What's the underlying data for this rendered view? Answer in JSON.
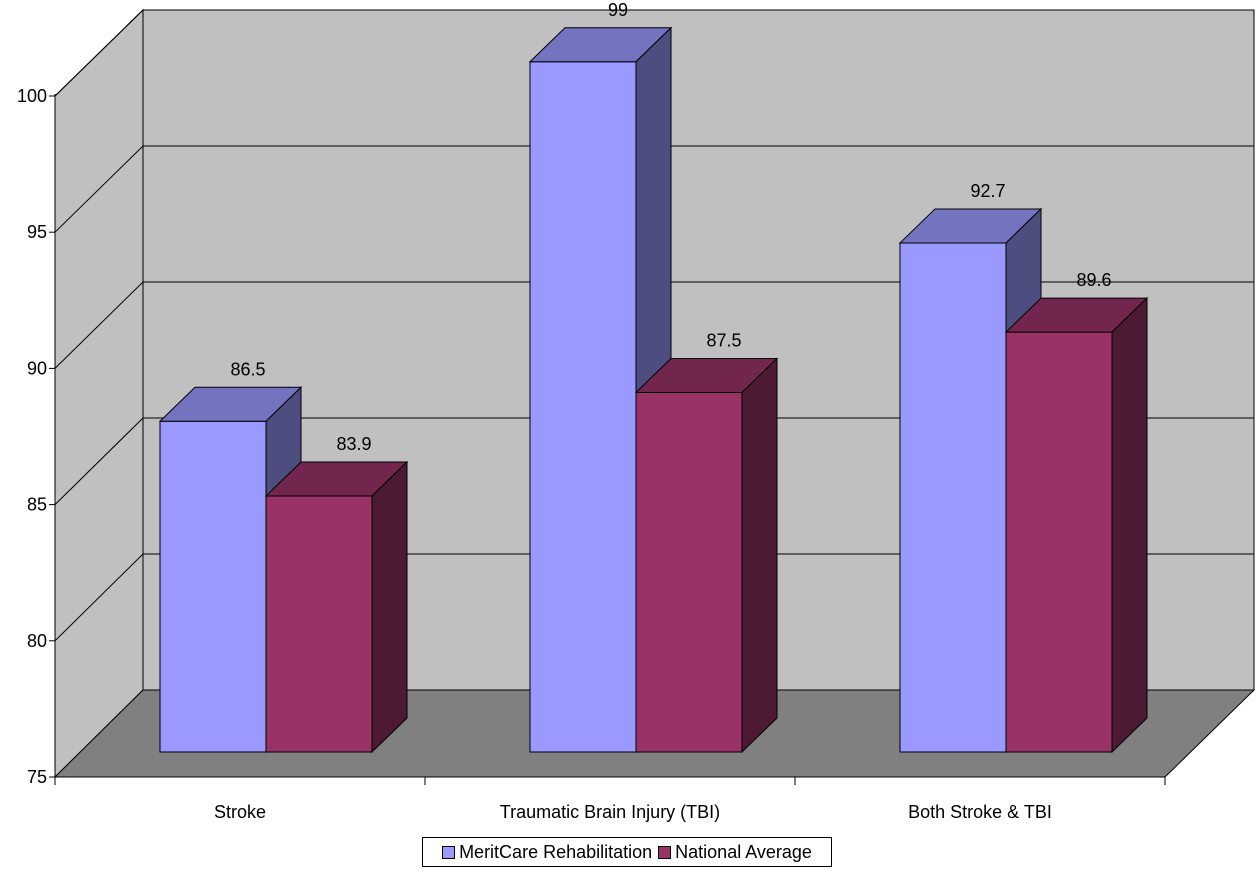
{
  "chart_data": {
    "type": "bar",
    "categories": [
      "Stroke",
      "Traumatic Brain Injury (TBI)",
      "Both Stroke & TBI"
    ],
    "series": [
      {
        "name": "MeritCare Rehabilitation",
        "values": [
          86.5,
          99,
          92.7
        ],
        "color": "#9999ff",
        "top_color": "#7373c0",
        "side_color": "#4d4d80"
      },
      {
        "name": "National Average",
        "values": [
          83.9,
          87.5,
          89.6
        ],
        "color": "#993366",
        "top_color": "#73264d",
        "side_color": "#4d1a33"
      }
    ],
    "data_labels": [
      [
        "86.5",
        "99",
        "92.7"
      ],
      [
        "83.9",
        "87.5",
        "89.6"
      ]
    ],
    "title": "",
    "xlabel": "",
    "ylabel": "",
    "ylim": [
      75,
      100
    ],
    "yticks": [
      "75",
      "80",
      "85",
      "90",
      "95",
      "100"
    ],
    "grid": true,
    "legend_position": "bottom",
    "wall_color": "#c0c0c0",
    "floor_color": "#808080"
  }
}
